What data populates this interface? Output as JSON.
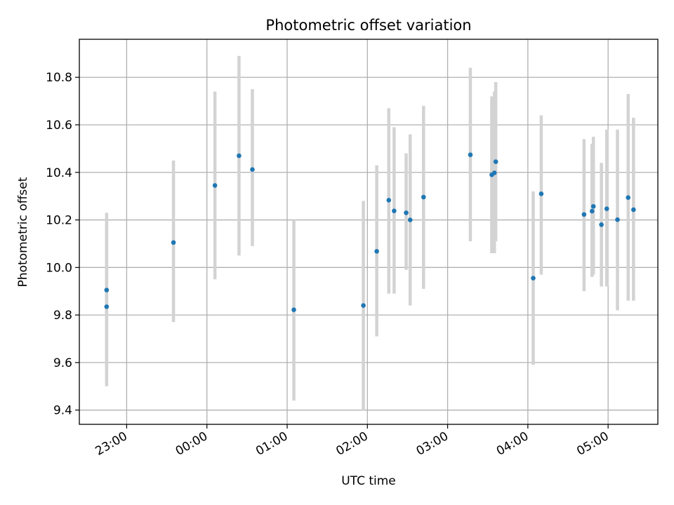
{
  "chart_data": {
    "type": "scatter",
    "title": "Photometric offset variation",
    "xlabel": "UTC time",
    "ylabel": "Photometric offset",
    "x_ticks": [
      "23:00",
      "00:00",
      "01:00",
      "02:00",
      "03:00",
      "04:00",
      "05:00"
    ],
    "x_tick_hours": [
      23,
      24,
      25,
      26,
      27,
      28,
      29
    ],
    "xlim": [
      22.41,
      29.62
    ],
    "ylim": [
      9.34,
      10.96
    ],
    "y_ticks": [
      9.4,
      9.6,
      9.8,
      10.0,
      10.2,
      10.4,
      10.6,
      10.8
    ],
    "y_tick_labels": [
      "9.4",
      "9.6",
      "9.8",
      "10.0",
      "10.2",
      "10.4",
      "10.6",
      "10.8"
    ],
    "grid": true,
    "colors": {
      "point": "#1f77b4",
      "errorbar": "#d3d3d3",
      "grid": "#b0b0b0",
      "axes": "#000000"
    },
    "points": [
      {
        "t": "22:45",
        "y": 9.835,
        "lo": 9.5,
        "hi": 10.18
      },
      {
        "t": "22:45",
        "y": 9.905,
        "lo": 9.58,
        "hi": 10.23
      },
      {
        "t": "23:35",
        "y": 10.105,
        "lo": 9.77,
        "hi": 10.45
      },
      {
        "t": "00:06",
        "y": 10.345,
        "lo": 9.95,
        "hi": 10.74
      },
      {
        "t": "00:24",
        "y": 10.47,
        "lo": 10.05,
        "hi": 10.89
      },
      {
        "t": "00:34",
        "y": 10.412,
        "lo": 10.09,
        "hi": 10.75
      },
      {
        "t": "01:05",
        "y": 9.822,
        "lo": 9.44,
        "hi": 10.2
      },
      {
        "t": "01:57",
        "y": 9.84,
        "lo": 9.4,
        "hi": 10.28
      },
      {
        "t": "02:07",
        "y": 10.068,
        "lo": 9.71,
        "hi": 10.43
      },
      {
        "t": "02:16",
        "y": 10.283,
        "lo": 9.89,
        "hi": 10.67
      },
      {
        "t": "02:20",
        "y": 10.238,
        "lo": 9.89,
        "hi": 10.59
      },
      {
        "t": "02:29",
        "y": 10.23,
        "lo": 9.99,
        "hi": 10.48
      },
      {
        "t": "02:32",
        "y": 10.2,
        "lo": 9.84,
        "hi": 10.56
      },
      {
        "t": "02:42",
        "y": 10.296,
        "lo": 9.91,
        "hi": 10.68
      },
      {
        "t": "03:17",
        "y": 10.474,
        "lo": 10.11,
        "hi": 10.84
      },
      {
        "t": "03:33",
        "y": 10.39,
        "lo": 10.06,
        "hi": 10.72
      },
      {
        "t": "03:35",
        "y": 10.398,
        "lo": 10.06,
        "hi": 10.74
      },
      {
        "t": "03:36",
        "y": 10.445,
        "lo": 10.11,
        "hi": 10.78
      },
      {
        "t": "04:04",
        "y": 9.955,
        "lo": 9.59,
        "hi": 10.32
      },
      {
        "t": "04:10",
        "y": 10.31,
        "lo": 9.97,
        "hi": 10.64
      },
      {
        "t": "04:42",
        "y": 10.223,
        "lo": 9.9,
        "hi": 10.54
      },
      {
        "t": "04:48",
        "y": 10.237,
        "lo": 9.96,
        "hi": 10.52
      },
      {
        "t": "04:49",
        "y": 10.257,
        "lo": 9.97,
        "hi": 10.55
      },
      {
        "t": "04:55",
        "y": 10.18,
        "lo": 9.92,
        "hi": 10.44
      },
      {
        "t": "04:59",
        "y": 10.247,
        "lo": 9.92,
        "hi": 10.58
      },
      {
        "t": "05:07",
        "y": 10.201,
        "lo": 9.82,
        "hi": 10.58
      },
      {
        "t": "05:15",
        "y": 10.294,
        "lo": 9.86,
        "hi": 10.73
      },
      {
        "t": "05:19",
        "y": 10.243,
        "lo": 9.86,
        "hi": 10.63
      }
    ]
  }
}
